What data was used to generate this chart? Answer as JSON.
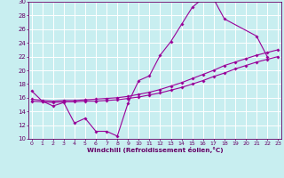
{
  "background_color": "#c8eef0",
  "grid_color": "#ffffff",
  "line_color": "#990099",
  "tick_color": "#660066",
  "xlabel": "Windchill (Refroidissement éolien,°C)",
  "xlim": [
    0,
    23
  ],
  "ylim": [
    10,
    30
  ],
  "xticks": [
    0,
    1,
    2,
    3,
    4,
    5,
    6,
    7,
    8,
    9,
    10,
    11,
    12,
    13,
    14,
    15,
    16,
    17,
    18,
    19,
    20,
    21,
    22,
    23
  ],
  "yticks": [
    10,
    12,
    14,
    16,
    18,
    20,
    22,
    24,
    26,
    28,
    30
  ],
  "series": [
    {
      "x": [
        0,
        1,
        2,
        3,
        4,
        5,
        6,
        7,
        8,
        9,
        10,
        11,
        12,
        13,
        14,
        15,
        16,
        17,
        18,
        21,
        22
      ],
      "y": [
        17.0,
        15.5,
        14.8,
        15.3,
        12.3,
        13.0,
        11.1,
        11.1,
        10.4,
        15.2,
        18.5,
        19.2,
        22.2,
        24.2,
        26.7,
        29.2,
        30.5,
        30.4,
        27.5,
        25.0,
        22.0
      ]
    },
    {
      "x": [
        0,
        1,
        2,
        3,
        4,
        5,
        6,
        7,
        8,
        9,
        10,
        11,
        12,
        13,
        14,
        15,
        16,
        17,
        18,
        19,
        20,
        21,
        22,
        23
      ],
      "y": [
        15.8,
        15.6,
        15.5,
        15.6,
        15.6,
        15.7,
        15.8,
        15.9,
        16.0,
        16.2,
        16.5,
        16.8,
        17.2,
        17.7,
        18.2,
        18.8,
        19.4,
        20.0,
        20.7,
        21.2,
        21.7,
        22.2,
        22.6,
        23.0
      ]
    },
    {
      "x": [
        0,
        1,
        2,
        3,
        4,
        5,
        6,
        7,
        8,
        9,
        10,
        11,
        12,
        13,
        14,
        15,
        16,
        17,
        18,
        19,
        20,
        21,
        22,
        23
      ],
      "y": [
        15.5,
        15.4,
        15.3,
        15.4,
        15.4,
        15.5,
        15.5,
        15.6,
        15.7,
        15.9,
        16.1,
        16.4,
        16.7,
        17.1,
        17.5,
        18.0,
        18.5,
        19.1,
        19.6,
        20.2,
        20.7,
        21.2,
        21.6,
        22.0
      ]
    }
  ]
}
